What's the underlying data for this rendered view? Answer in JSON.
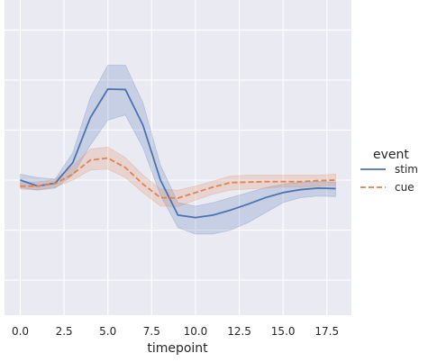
{
  "chart_data": {
    "type": "line",
    "title": "",
    "xlabel": "timepoint",
    "ylabel": "",
    "x_ticks": [
      "0.0",
      "2.5",
      "5.0",
      "7.5",
      "10.0",
      "12.5",
      "15.0",
      "17.5"
    ],
    "xlim": [
      -0.9,
      18.9
    ],
    "ylim": [
      -0.27,
      0.36
    ],
    "grid": true,
    "legend": {
      "title": "event",
      "placement": "right"
    },
    "x": [
      0,
      1,
      2,
      3,
      4,
      5,
      6,
      7,
      8,
      9,
      10,
      11,
      12,
      13,
      14,
      15,
      16,
      17,
      18
    ],
    "series": [
      {
        "name": "stim",
        "color": "#4c72b0",
        "style": "solid",
        "values": [
          0.0,
          -0.012,
          -0.006,
          0.035,
          0.125,
          0.182,
          0.181,
          0.11,
          0.0,
          -0.07,
          -0.075,
          -0.07,
          -0.06,
          -0.048,
          -0.035,
          -0.025,
          -0.019,
          -0.016,
          -0.017
        ],
        "ci_low": [
          -0.015,
          -0.02,
          -0.016,
          0.01,
          0.07,
          0.12,
          0.13,
          0.065,
          -0.03,
          -0.095,
          -0.108,
          -0.108,
          -0.1,
          -0.085,
          -0.065,
          -0.045,
          -0.035,
          -0.032,
          -0.033
        ],
        "ci_high": [
          0.012,
          0.005,
          0.002,
          0.055,
          0.165,
          0.23,
          0.23,
          0.155,
          0.03,
          -0.045,
          -0.052,
          -0.045,
          -0.035,
          -0.025,
          -0.015,
          -0.008,
          -0.004,
          -0.003,
          -0.004
        ]
      },
      {
        "name": "cue",
        "color": "#dd8452",
        "style": "dashed",
        "values": [
          -0.012,
          -0.012,
          -0.007,
          0.012,
          0.04,
          0.044,
          0.025,
          -0.008,
          -0.035,
          -0.036,
          -0.025,
          -0.014,
          -0.005,
          -0.004,
          -0.003,
          -0.003,
          -0.003,
          -0.001,
          0.0
        ],
        "ci_low": [
          -0.018,
          -0.02,
          -0.014,
          0.0,
          0.02,
          0.022,
          0.005,
          -0.025,
          -0.052,
          -0.053,
          -0.04,
          -0.028,
          -0.02,
          -0.018,
          -0.016,
          -0.014,
          -0.014,
          -0.012,
          -0.01
        ],
        "ci_high": [
          -0.005,
          -0.004,
          0.002,
          0.028,
          0.062,
          0.066,
          0.045,
          0.01,
          -0.018,
          -0.02,
          -0.012,
          -0.002,
          0.008,
          0.01,
          0.01,
          0.01,
          0.01,
          0.01,
          0.012
        ]
      }
    ]
  }
}
